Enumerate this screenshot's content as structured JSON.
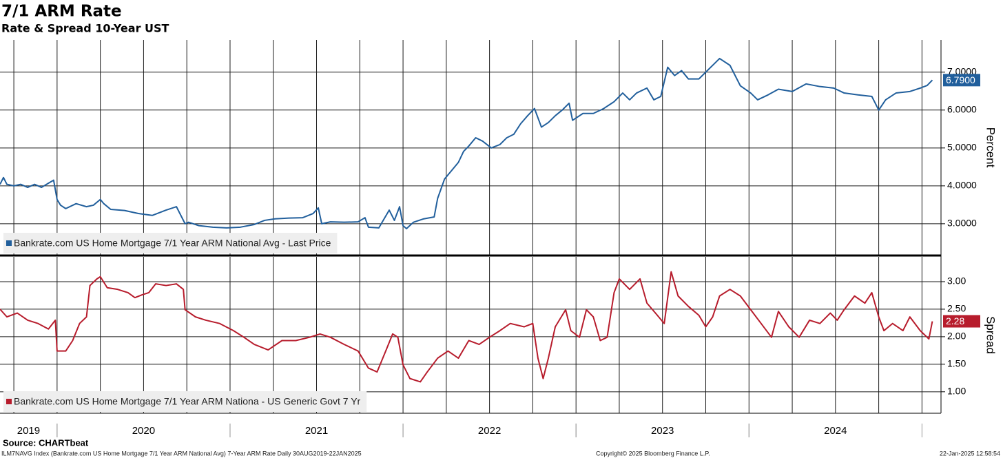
{
  "title": "7/1 ARM Rate",
  "subtitle": "Rate & Spread 10-Year UST",
  "source": "Source: CHARTbeat",
  "footer": {
    "description": "ILM7NAVG Index (Bankrate.com US Home Mortgage 7/1 Year ARM National Avg) 7-Year ARM Rate  Daily 30AUG2019-22JAN2025",
    "copyright": "Copyright© 2025 Bloomberg Finance L.P.",
    "timestamp": "22-Jan-2025 12:58:54"
  },
  "chart_data": [
    {
      "type": "line",
      "ylabel": "Percent",
      "xlim": [
        2019.67,
        2025.11
      ],
      "xgrid": [
        2019.75,
        2020,
        2020.25,
        2020.5,
        2020.75,
        2021,
        2021.25,
        2021.5,
        2021.75,
        2022,
        2022.25,
        2022.5,
        2022.75,
        2023,
        2023.25,
        2023.5,
        2023.75,
        2024,
        2024.25,
        2024.5,
        2024.75,
        2025
      ],
      "ylim": [
        2.18,
        7.85
      ],
      "yticks": [
        {
          "value": 3,
          "label": "3.0000"
        },
        {
          "value": 4,
          "label": "4.0000"
        },
        {
          "value": 5,
          "label": "5.0000"
        },
        {
          "value": 6,
          "label": "6.0000"
        },
        {
          "value": 7,
          "label": "7.0000"
        }
      ],
      "last_value": {
        "value": 6.79,
        "label": "6.7900"
      },
      "x": [
        2019.67,
        2019.69,
        2019.71,
        2019.75,
        2019.79,
        2019.83,
        2019.87,
        2019.91,
        2019.95,
        2019.98,
        2020.0,
        2020.02,
        2020.05,
        2020.11,
        2020.17,
        2020.21,
        2020.25,
        2020.27,
        2020.31,
        2020.39,
        2020.47,
        2020.55,
        2020.63,
        2020.69,
        2020.71,
        2020.74,
        2020.76,
        2020.82,
        2020.9,
        2020.98,
        2021.06,
        2021.14,
        2021.2,
        2021.26,
        2021.34,
        2021.42,
        2021.48,
        2021.51,
        2021.53,
        2021.58,
        2021.66,
        2021.74,
        2021.78,
        2021.8,
        2021.86,
        2021.92,
        2021.95,
        2021.98,
        2022.0,
        2022.02,
        2022.06,
        2022.12,
        2022.18,
        2022.2,
        2022.24,
        2022.28,
        2022.32,
        2022.35,
        2022.38,
        2022.42,
        2022.46,
        2022.51,
        2022.56,
        2022.6,
        2022.64,
        2022.68,
        2022.72,
        2022.76,
        2022.8,
        2022.84,
        2022.88,
        2022.92,
        2022.96,
        2022.98,
        2023.04,
        2023.1,
        2023.16,
        2023.22,
        2023.27,
        2023.31,
        2023.35,
        2023.41,
        2023.45,
        2023.49,
        2023.53,
        2023.57,
        2023.61,
        2023.65,
        2023.71,
        2023.77,
        2023.83,
        2023.89,
        2023.95,
        2024.01,
        2024.05,
        2024.11,
        2024.17,
        2024.25,
        2024.33,
        2024.41,
        2024.49,
        2024.55,
        2024.63,
        2024.71,
        2024.75,
        2024.79,
        2024.85,
        2024.93,
        2024.99,
        2025.03,
        2025.06
      ],
      "series": [
        {
          "name": "Bankrate.com US Home Mortgage 7/1 Year ARM National Avg - Last Price",
          "color": "#215f9c",
          "values": [
            4.04,
            4.22,
            4.04,
            4.0,
            4.04,
            3.96,
            4.04,
            3.96,
            4.07,
            4.15,
            3.64,
            3.49,
            3.4,
            3.53,
            3.45,
            3.49,
            3.64,
            3.53,
            3.38,
            3.35,
            3.27,
            3.22,
            3.36,
            3.45,
            3.27,
            3.0,
            3.04,
            2.95,
            2.91,
            2.89,
            2.91,
            2.98,
            3.09,
            3.13,
            3.15,
            3.16,
            3.27,
            3.42,
            3.0,
            3.05,
            3.04,
            3.05,
            3.16,
            2.91,
            2.89,
            3.36,
            3.09,
            3.45,
            2.95,
            2.87,
            3.04,
            3.13,
            3.18,
            3.67,
            4.18,
            4.4,
            4.62,
            4.91,
            5.05,
            5.27,
            5.18,
            5.0,
            5.09,
            5.27,
            5.36,
            5.64,
            5.85,
            6.04,
            5.55,
            5.67,
            5.85,
            6.0,
            6.18,
            5.73,
            5.91,
            5.91,
            6.04,
            6.22,
            6.45,
            6.27,
            6.45,
            6.58,
            6.27,
            6.36,
            7.13,
            6.91,
            7.04,
            6.82,
            6.82,
            7.09,
            7.36,
            7.18,
            6.64,
            6.45,
            6.27,
            6.4,
            6.55,
            6.49,
            6.69,
            6.62,
            6.58,
            6.45,
            6.4,
            6.36,
            6.0,
            6.27,
            6.45,
            6.49,
            6.58,
            6.65,
            6.79
          ]
        }
      ]
    },
    {
      "type": "line",
      "ylabel": "Spread",
      "xlim": [
        2019.67,
        2025.11
      ],
      "xgrid": [
        2019.75,
        2020,
        2020.25,
        2020.5,
        2020.75,
        2021,
        2021.25,
        2021.5,
        2021.75,
        2022,
        2022.25,
        2022.5,
        2022.75,
        2023,
        2023.25,
        2023.5,
        2023.75,
        2024,
        2024.25,
        2024.5,
        2024.75,
        2025
      ],
      "xticks": [
        {
          "value": 2019,
          "label": "2019"
        },
        {
          "value": 2020,
          "label": "2020"
        },
        {
          "value": 2021,
          "label": "2021"
        },
        {
          "value": 2022,
          "label": "2022"
        },
        {
          "value": 2023,
          "label": "2023"
        },
        {
          "value": 2024,
          "label": "2024"
        }
      ],
      "ylim": [
        0.61,
        3.45
      ],
      "yticks": [
        {
          "value": 1,
          "label": "1.00"
        },
        {
          "value": 1.5,
          "label": "1.50"
        },
        {
          "value": 2,
          "label": "2.00"
        },
        {
          "value": 2.5,
          "label": "2.50"
        },
        {
          "value": 3,
          "label": "3.00"
        }
      ],
      "last_value": {
        "value": 2.28,
        "label": "2.28"
      },
      "x": [
        2019.67,
        2019.71,
        2019.77,
        2019.83,
        2019.89,
        2019.95,
        2019.99,
        2020.0,
        2020.05,
        2020.09,
        2020.13,
        2020.17,
        2020.19,
        2020.23,
        2020.25,
        2020.29,
        2020.35,
        2020.41,
        2020.45,
        2020.49,
        2020.53,
        2020.57,
        2020.63,
        2020.69,
        2020.73,
        2020.74,
        2020.8,
        2020.86,
        2020.94,
        2021.02,
        2021.08,
        2021.14,
        2021.22,
        2021.3,
        2021.38,
        2021.46,
        2021.52,
        2021.58,
        2021.66,
        2021.74,
        2021.8,
        2021.85,
        2021.9,
        2021.94,
        2021.97,
        2022.0,
        2022.04,
        2022.1,
        2022.14,
        2022.2,
        2022.26,
        2022.32,
        2022.38,
        2022.44,
        2022.5,
        2022.56,
        2022.62,
        2022.7,
        2022.75,
        2022.78,
        2022.81,
        2022.84,
        2022.88,
        2022.94,
        2022.97,
        2023.02,
        2023.06,
        2023.1,
        2023.14,
        2023.18,
        2023.22,
        2023.25,
        2023.31,
        2023.37,
        2023.41,
        2023.47,
        2023.51,
        2023.55,
        2023.59,
        2023.65,
        2023.71,
        2023.75,
        2023.79,
        2023.83,
        2023.89,
        2023.95,
        2024.01,
        2024.07,
        2024.13,
        2024.17,
        2024.23,
        2024.29,
        2024.35,
        2024.41,
        2024.47,
        2024.51,
        2024.55,
        2024.61,
        2024.67,
        2024.71,
        2024.75,
        2024.78,
        2024.83,
        2024.89,
        2024.93,
        2024.99,
        2025.03,
        2025.04,
        2025.06
      ],
      "series": [
        {
          "name": "Bankrate.com US Home Mortgage 7/1 Year ARM Nationa - US Generic Govt 7 Yr",
          "color": "#b71c2c",
          "values": [
            2.5,
            2.36,
            2.43,
            2.3,
            2.24,
            2.14,
            2.3,
            1.74,
            1.74,
            1.93,
            2.24,
            2.36,
            2.93,
            3.05,
            3.09,
            2.89,
            2.86,
            2.8,
            2.71,
            2.76,
            2.8,
            2.96,
            2.93,
            2.96,
            2.86,
            2.49,
            2.36,
            2.3,
            2.24,
            2.11,
            1.99,
            1.86,
            1.76,
            1.93,
            1.93,
            1.99,
            2.05,
            1.99,
            1.86,
            1.74,
            1.43,
            1.36,
            1.74,
            2.05,
            1.99,
            1.49,
            1.24,
            1.18,
            1.36,
            1.61,
            1.74,
            1.61,
            1.93,
            1.86,
            1.99,
            2.11,
            2.24,
            2.18,
            2.24,
            1.61,
            1.24,
            1.61,
            2.18,
            2.49,
            2.11,
            1.99,
            2.49,
            2.36,
            1.93,
            1.99,
            2.8,
            3.05,
            2.86,
            3.05,
            2.61,
            2.39,
            2.24,
            3.18,
            2.74,
            2.55,
            2.39,
            2.18,
            2.36,
            2.74,
            2.86,
            2.74,
            2.49,
            2.24,
            1.99,
            2.46,
            2.18,
            1.99,
            2.3,
            2.24,
            2.43,
            2.3,
            2.49,
            2.74,
            2.61,
            2.8,
            2.36,
            2.11,
            2.24,
            2.11,
            2.36,
            2.11,
            1.99,
            1.96,
            2.28
          ]
        }
      ]
    }
  ]
}
